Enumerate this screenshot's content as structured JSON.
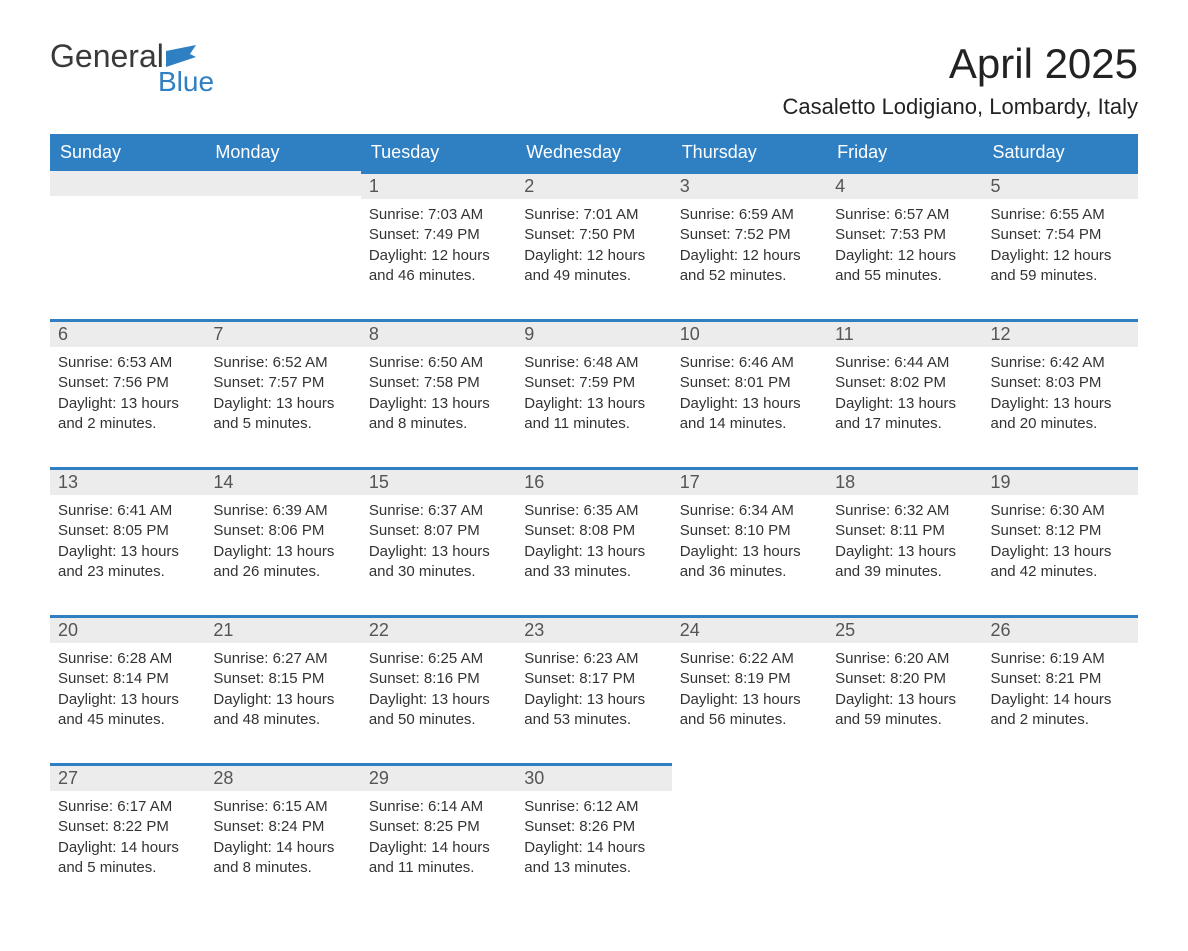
{
  "brand": {
    "logo_text_1": "General",
    "logo_text_2": "Blue",
    "logo_color_primary": "#3a3a3a",
    "logo_color_accent": "#2f7fc3"
  },
  "header": {
    "month_title": "April 2025",
    "location": "Casaletto Lodigiano, Lombardy, Italy"
  },
  "colors": {
    "header_bg": "#2f7fc3",
    "header_text": "#ffffff",
    "daynum_bg": "#ececec",
    "daynum_border": "#2f7fc3",
    "body_text": "#333333",
    "page_bg": "#ffffff"
  },
  "typography": {
    "title_fontsize": 42,
    "location_fontsize": 22,
    "weekday_fontsize": 18,
    "daynum_fontsize": 18,
    "body_fontsize": 15
  },
  "calendar": {
    "type": "table",
    "weekdays": [
      "Sunday",
      "Monday",
      "Tuesday",
      "Wednesday",
      "Thursday",
      "Friday",
      "Saturday"
    ],
    "weeks": [
      {
        "days": [
          {
            "empty": true
          },
          {
            "empty": true
          },
          {
            "num": "1",
            "sunrise": "Sunrise: 7:03 AM",
            "sunset": "Sunset: 7:49 PM",
            "daylight1": "Daylight: 12 hours",
            "daylight2": "and 46 minutes."
          },
          {
            "num": "2",
            "sunrise": "Sunrise: 7:01 AM",
            "sunset": "Sunset: 7:50 PM",
            "daylight1": "Daylight: 12 hours",
            "daylight2": "and 49 minutes."
          },
          {
            "num": "3",
            "sunrise": "Sunrise: 6:59 AM",
            "sunset": "Sunset: 7:52 PM",
            "daylight1": "Daylight: 12 hours",
            "daylight2": "and 52 minutes."
          },
          {
            "num": "4",
            "sunrise": "Sunrise: 6:57 AM",
            "sunset": "Sunset: 7:53 PM",
            "daylight1": "Daylight: 12 hours",
            "daylight2": "and 55 minutes."
          },
          {
            "num": "5",
            "sunrise": "Sunrise: 6:55 AM",
            "sunset": "Sunset: 7:54 PM",
            "daylight1": "Daylight: 12 hours",
            "daylight2": "and 59 minutes."
          }
        ]
      },
      {
        "days": [
          {
            "num": "6",
            "sunrise": "Sunrise: 6:53 AM",
            "sunset": "Sunset: 7:56 PM",
            "daylight1": "Daylight: 13 hours",
            "daylight2": "and 2 minutes."
          },
          {
            "num": "7",
            "sunrise": "Sunrise: 6:52 AM",
            "sunset": "Sunset: 7:57 PM",
            "daylight1": "Daylight: 13 hours",
            "daylight2": "and 5 minutes."
          },
          {
            "num": "8",
            "sunrise": "Sunrise: 6:50 AM",
            "sunset": "Sunset: 7:58 PM",
            "daylight1": "Daylight: 13 hours",
            "daylight2": "and 8 minutes."
          },
          {
            "num": "9",
            "sunrise": "Sunrise: 6:48 AM",
            "sunset": "Sunset: 7:59 PM",
            "daylight1": "Daylight: 13 hours",
            "daylight2": "and 11 minutes."
          },
          {
            "num": "10",
            "sunrise": "Sunrise: 6:46 AM",
            "sunset": "Sunset: 8:01 PM",
            "daylight1": "Daylight: 13 hours",
            "daylight2": "and 14 minutes."
          },
          {
            "num": "11",
            "sunrise": "Sunrise: 6:44 AM",
            "sunset": "Sunset: 8:02 PM",
            "daylight1": "Daylight: 13 hours",
            "daylight2": "and 17 minutes."
          },
          {
            "num": "12",
            "sunrise": "Sunrise: 6:42 AM",
            "sunset": "Sunset: 8:03 PM",
            "daylight1": "Daylight: 13 hours",
            "daylight2": "and 20 minutes."
          }
        ]
      },
      {
        "days": [
          {
            "num": "13",
            "sunrise": "Sunrise: 6:41 AM",
            "sunset": "Sunset: 8:05 PM",
            "daylight1": "Daylight: 13 hours",
            "daylight2": "and 23 minutes."
          },
          {
            "num": "14",
            "sunrise": "Sunrise: 6:39 AM",
            "sunset": "Sunset: 8:06 PM",
            "daylight1": "Daylight: 13 hours",
            "daylight2": "and 26 minutes."
          },
          {
            "num": "15",
            "sunrise": "Sunrise: 6:37 AM",
            "sunset": "Sunset: 8:07 PM",
            "daylight1": "Daylight: 13 hours",
            "daylight2": "and 30 minutes."
          },
          {
            "num": "16",
            "sunrise": "Sunrise: 6:35 AM",
            "sunset": "Sunset: 8:08 PM",
            "daylight1": "Daylight: 13 hours",
            "daylight2": "and 33 minutes."
          },
          {
            "num": "17",
            "sunrise": "Sunrise: 6:34 AM",
            "sunset": "Sunset: 8:10 PM",
            "daylight1": "Daylight: 13 hours",
            "daylight2": "and 36 minutes."
          },
          {
            "num": "18",
            "sunrise": "Sunrise: 6:32 AM",
            "sunset": "Sunset: 8:11 PM",
            "daylight1": "Daylight: 13 hours",
            "daylight2": "and 39 minutes."
          },
          {
            "num": "19",
            "sunrise": "Sunrise: 6:30 AM",
            "sunset": "Sunset: 8:12 PM",
            "daylight1": "Daylight: 13 hours",
            "daylight2": "and 42 minutes."
          }
        ]
      },
      {
        "days": [
          {
            "num": "20",
            "sunrise": "Sunrise: 6:28 AM",
            "sunset": "Sunset: 8:14 PM",
            "daylight1": "Daylight: 13 hours",
            "daylight2": "and 45 minutes."
          },
          {
            "num": "21",
            "sunrise": "Sunrise: 6:27 AM",
            "sunset": "Sunset: 8:15 PM",
            "daylight1": "Daylight: 13 hours",
            "daylight2": "and 48 minutes."
          },
          {
            "num": "22",
            "sunrise": "Sunrise: 6:25 AM",
            "sunset": "Sunset: 8:16 PM",
            "daylight1": "Daylight: 13 hours",
            "daylight2": "and 50 minutes."
          },
          {
            "num": "23",
            "sunrise": "Sunrise: 6:23 AM",
            "sunset": "Sunset: 8:17 PM",
            "daylight1": "Daylight: 13 hours",
            "daylight2": "and 53 minutes."
          },
          {
            "num": "24",
            "sunrise": "Sunrise: 6:22 AM",
            "sunset": "Sunset: 8:19 PM",
            "daylight1": "Daylight: 13 hours",
            "daylight2": "and 56 minutes."
          },
          {
            "num": "25",
            "sunrise": "Sunrise: 6:20 AM",
            "sunset": "Sunset: 8:20 PM",
            "daylight1": "Daylight: 13 hours",
            "daylight2": "and 59 minutes."
          },
          {
            "num": "26",
            "sunrise": "Sunrise: 6:19 AM",
            "sunset": "Sunset: 8:21 PM",
            "daylight1": "Daylight: 14 hours",
            "daylight2": "and 2 minutes."
          }
        ]
      },
      {
        "days": [
          {
            "num": "27",
            "sunrise": "Sunrise: 6:17 AM",
            "sunset": "Sunset: 8:22 PM",
            "daylight1": "Daylight: 14 hours",
            "daylight2": "and 5 minutes."
          },
          {
            "num": "28",
            "sunrise": "Sunrise: 6:15 AM",
            "sunset": "Sunset: 8:24 PM",
            "daylight1": "Daylight: 14 hours",
            "daylight2": "and 8 minutes."
          },
          {
            "num": "29",
            "sunrise": "Sunrise: 6:14 AM",
            "sunset": "Sunset: 8:25 PM",
            "daylight1": "Daylight: 14 hours",
            "daylight2": "and 11 minutes."
          },
          {
            "num": "30",
            "sunrise": "Sunrise: 6:12 AM",
            "sunset": "Sunset: 8:26 PM",
            "daylight1": "Daylight: 14 hours",
            "daylight2": "and 13 minutes."
          },
          {
            "empty": true
          },
          {
            "empty": true
          },
          {
            "empty": true
          }
        ]
      }
    ]
  }
}
